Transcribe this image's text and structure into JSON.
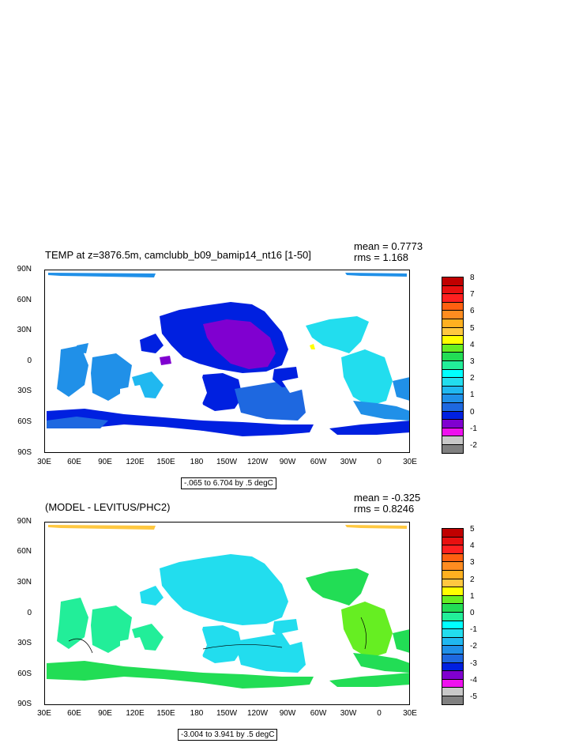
{
  "panels": [
    {
      "title": "TEMP at z=3876.5m, camclubb_b09_bamip14_nt16 [1-50]",
      "mean": "mean = 0.7773",
      "rms": "rms = 1.168",
      "range_label": "-.065 to 6.704 by .5 degC",
      "lat_labels": [
        "90N",
        "60N",
        "30N",
        "0",
        "30S",
        "60S",
        "90S"
      ],
      "lon_labels": [
        "30E",
        "60E",
        "90E",
        "120E",
        "150E",
        "180",
        "150W",
        "120W",
        "90W",
        "60W",
        "30W",
        "0",
        "30E"
      ],
      "colorbar_labels": [
        "8",
        "7",
        "6",
        "5",
        "4",
        "3",
        "2",
        "1",
        "0",
        "-1",
        "-2"
      ],
      "colorbar_colors": [
        "#c00000",
        "#e81010",
        "#ff2020",
        "#ff6010",
        "#ff8c20",
        "#ffb020",
        "#ffc840",
        "#ffff00",
        "#66ee22",
        "#22dd55",
        "#22ee99",
        "#00ffff",
        "#22ddee",
        "#20b8f0",
        "#2090e8",
        "#1e68e0",
        "#0020e0",
        "#8000d0",
        "#ee10ee",
        "#c8c8c8",
        "#808080"
      ]
    },
    {
      "title": "(MODEL - LEVITUS/PHC2)",
      "mean": "mean = -0.325",
      "rms": "rms = 0.8246",
      "range_label": "-3.004 to 3.941 by .5 degC",
      "lat_labels": [
        "90N",
        "60N",
        "30N",
        "0",
        "30S",
        "60S",
        "90S"
      ],
      "lon_labels": [
        "30E",
        "60E",
        "90E",
        "120E",
        "150E",
        "180",
        "150W",
        "120W",
        "90W",
        "60W",
        "30W",
        "0",
        "30E"
      ],
      "colorbar_labels": [
        "5",
        "4",
        "3",
        "2",
        "1",
        "0",
        "-1",
        "-2",
        "-3",
        "-4",
        "-5"
      ],
      "colorbar_colors": [
        "#c00000",
        "#e81010",
        "#ff2020",
        "#ff6010",
        "#ff8c20",
        "#ffb020",
        "#ffc840",
        "#ffff00",
        "#66ee22",
        "#22dd55",
        "#22ee99",
        "#00ffff",
        "#22ddee",
        "#20b8f0",
        "#2090e8",
        "#1e68e0",
        "#0020e0",
        "#8000d0",
        "#ee10ee",
        "#c8c8c8",
        "#808080"
      ]
    }
  ]
}
